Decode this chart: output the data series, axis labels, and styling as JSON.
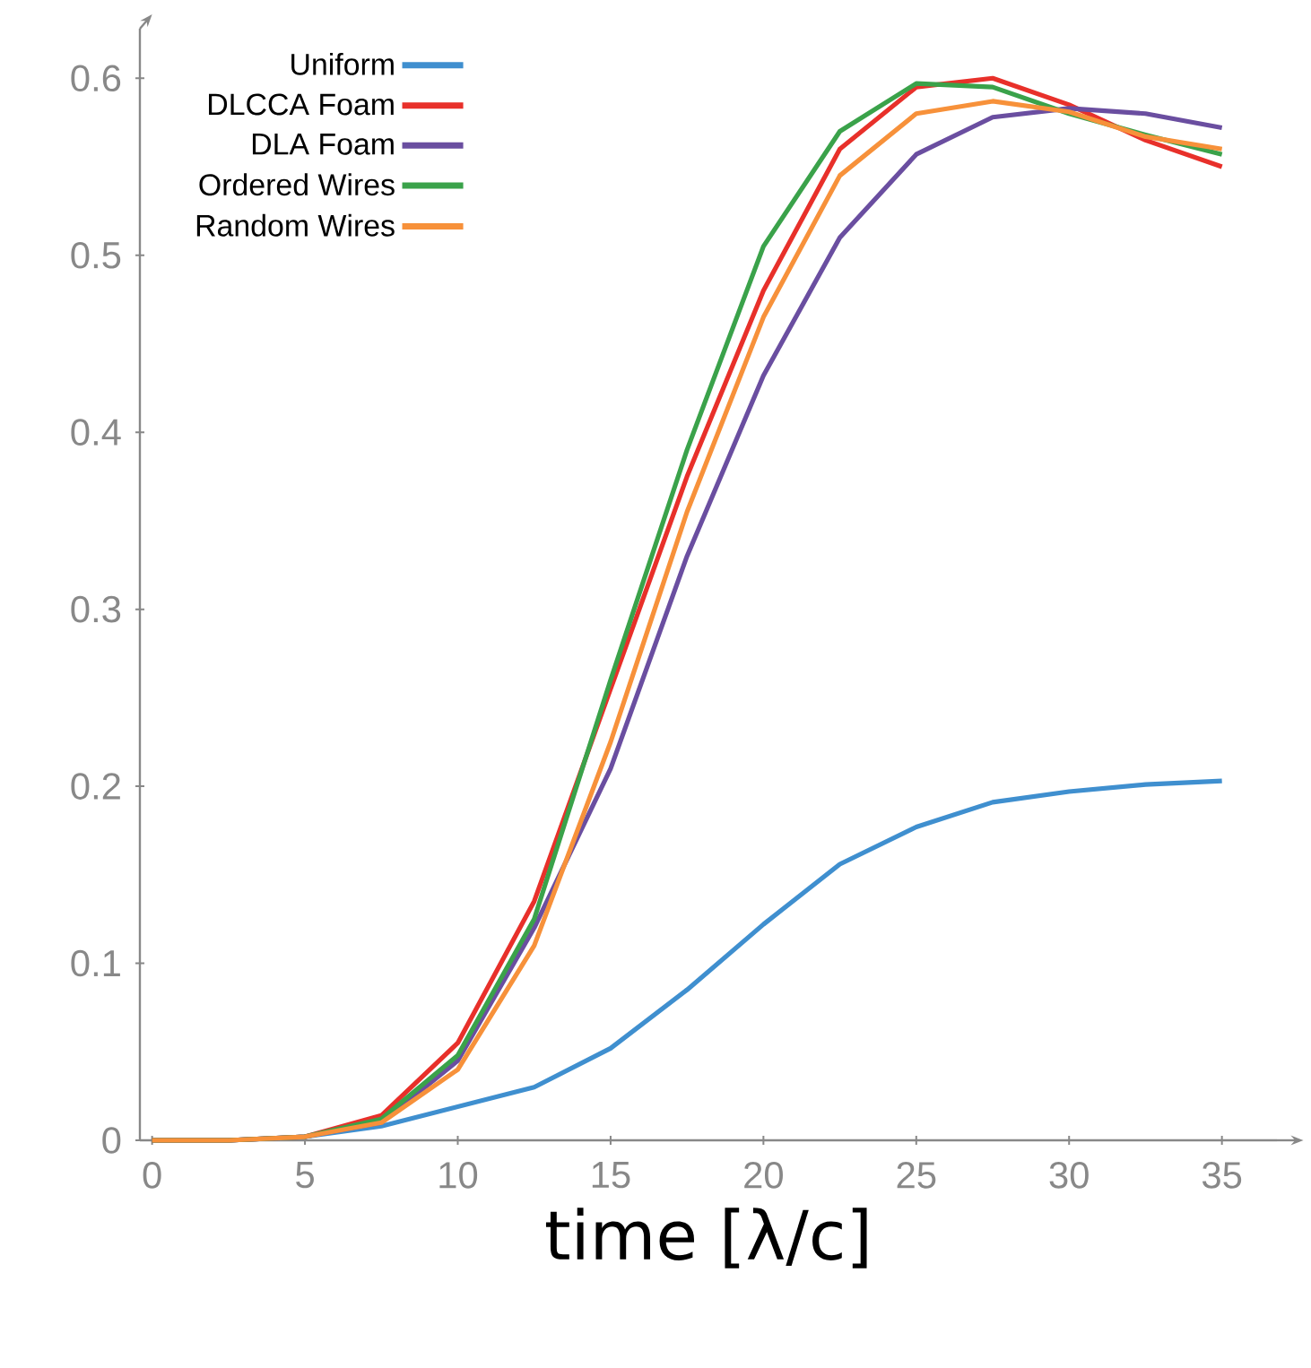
{
  "chart_data": {
    "type": "line",
    "xlabel": "time [λ/c]",
    "x": [
      0,
      2.5,
      5,
      7.5,
      10,
      12.5,
      15,
      17.5,
      20,
      22.5,
      25,
      27.5,
      30,
      32.5,
      35
    ],
    "series": [
      {
        "name": "Uniform",
        "color": "#3f8fcf",
        "values": [
          0,
          0,
          0.002,
          0.008,
          0.019,
          0.03,
          0.052,
          0.085,
          0.122,
          0.156,
          0.177,
          0.191,
          0.197,
          0.201,
          0.203
        ]
      },
      {
        "name": "DLCCA Foam",
        "color": "#e8302a",
        "values": [
          0,
          0,
          0.002,
          0.014,
          0.055,
          0.135,
          0.255,
          0.375,
          0.48,
          0.56,
          0.595,
          0.6,
          0.585,
          0.565,
          0.55
        ]
      },
      {
        "name": "DLA Foam",
        "color": "#6a4ea0",
        "values": [
          0,
          0,
          0.002,
          0.01,
          0.045,
          0.12,
          0.21,
          0.33,
          0.432,
          0.51,
          0.557,
          0.578,
          0.583,
          0.58,
          0.572
        ]
      },
      {
        "name": "Ordered Wires",
        "color": "#3aa24a",
        "values": [
          0,
          0,
          0.002,
          0.012,
          0.048,
          0.125,
          0.26,
          0.39,
          0.505,
          0.57,
          0.597,
          0.595,
          0.58,
          0.568,
          0.557
        ]
      },
      {
        "name": "Random Wires",
        "color": "#f7913a",
        "values": [
          0,
          0,
          0.002,
          0.01,
          0.04,
          0.11,
          0.225,
          0.355,
          0.465,
          0.545,
          0.58,
          0.587,
          0.581,
          0.567,
          0.56
        ]
      }
    ],
    "xlim": [
      -0.4,
      36.8
    ],
    "ylim": [
      0,
      0.628
    ],
    "xticks": [
      0,
      5,
      10,
      15,
      20,
      25,
      30,
      35
    ],
    "yticks": [
      0,
      0.1,
      0.2,
      0.3,
      0.4,
      0.5,
      0.6
    ],
    "legend": "top left"
  }
}
